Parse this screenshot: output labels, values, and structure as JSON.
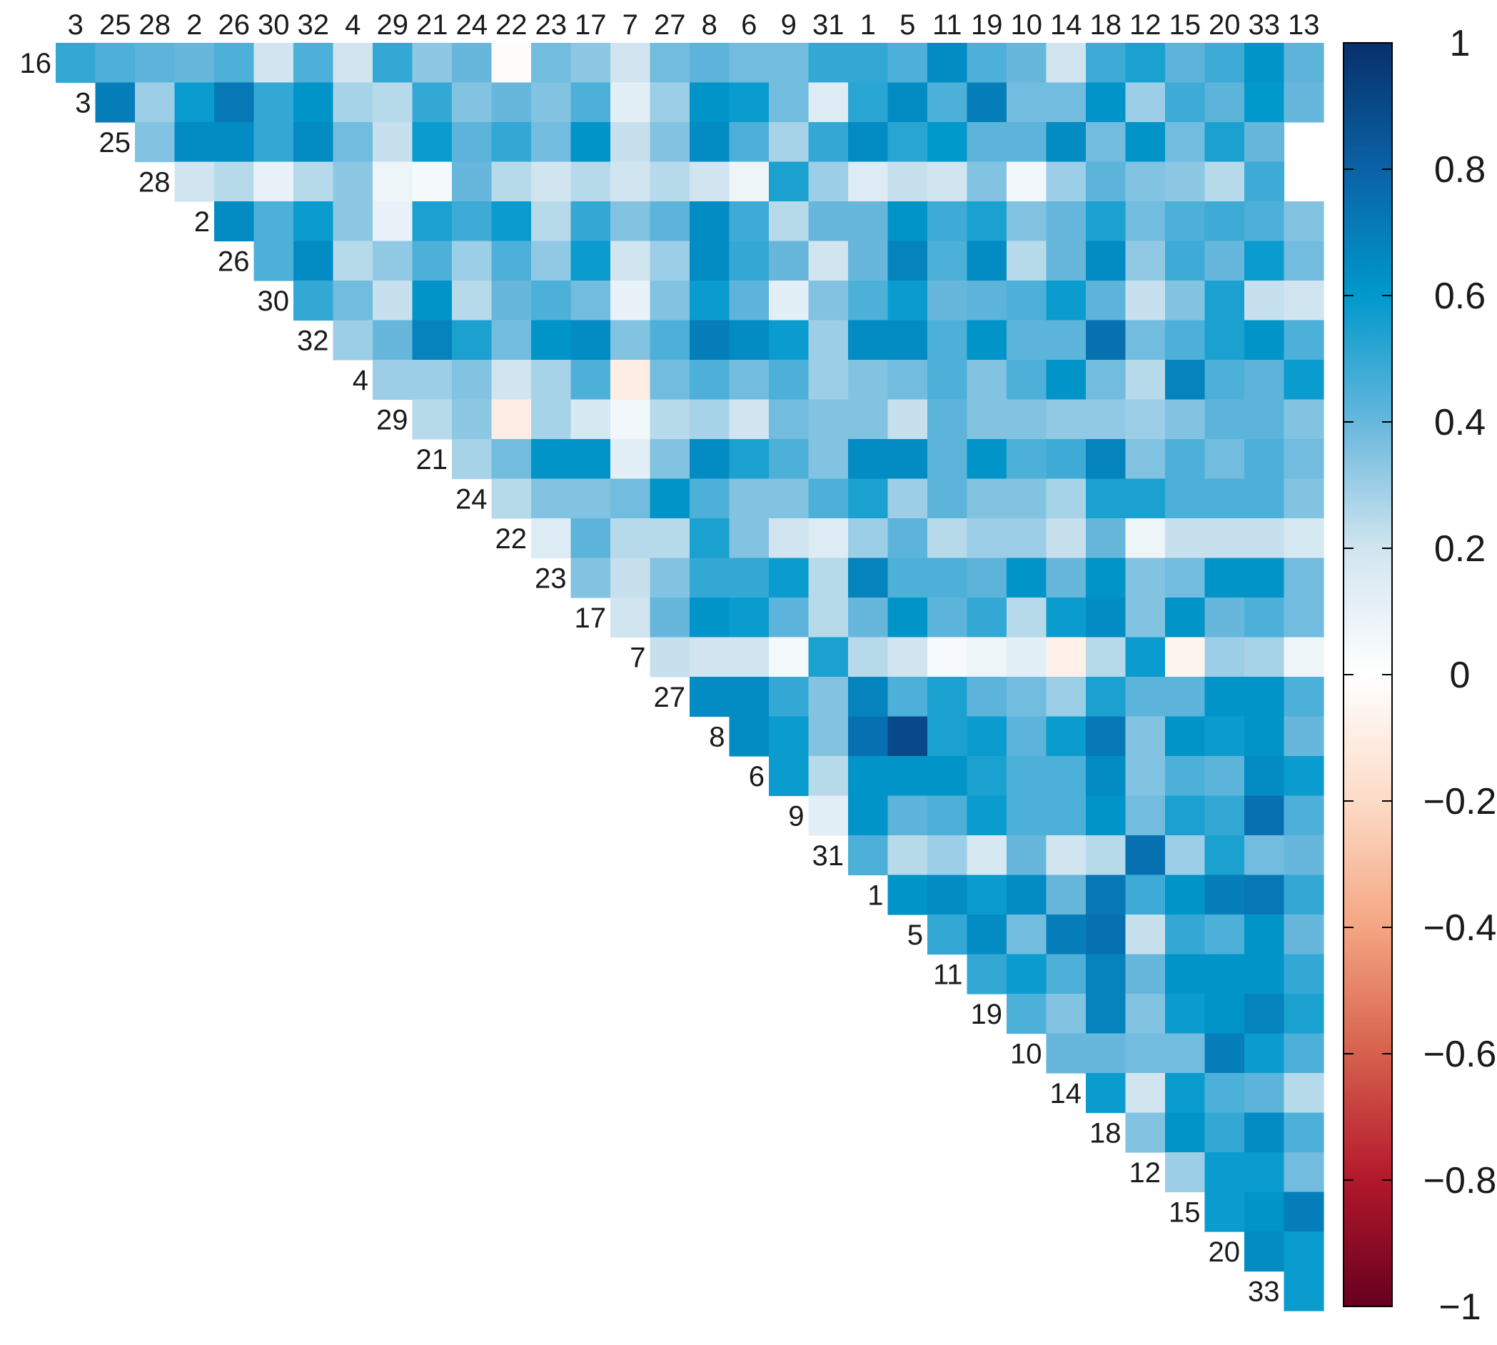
{
  "chart_data": {
    "type": "heatmap",
    "layout": "upper-triangle correlation matrix",
    "column_labels": [
      "3",
      "25",
      "28",
      "2",
      "26",
      "30",
      "32",
      "4",
      "29",
      "21",
      "24",
      "22",
      "23",
      "17",
      "7",
      "27",
      "8",
      "6",
      "9",
      "31",
      "1",
      "5",
      "11",
      "19",
      "10",
      "14",
      "18",
      "12",
      "15",
      "20",
      "33",
      "13"
    ],
    "row_labels": [
      "16",
      "3",
      "25",
      "28",
      "2",
      "26",
      "30",
      "32",
      "4",
      "29",
      "21",
      "24",
      "22",
      "23",
      "17",
      "7",
      "27",
      "8",
      "6",
      "9",
      "31",
      "1",
      "5",
      "11",
      "19",
      "10",
      "14",
      "18",
      "12",
      "15",
      "20",
      "33"
    ],
    "values": [
      [
        0.5,
        0.45,
        0.42,
        0.4,
        0.45,
        0.2,
        0.45,
        0.2,
        0.5,
        0.33,
        0.4,
        -0.02,
        0.38,
        0.33,
        0.2,
        0.38,
        0.42,
        0.38,
        0.38,
        0.5,
        0.5,
        0.45,
        0.65,
        0.45,
        0.4,
        0.2,
        0.48,
        0.55,
        0.42,
        0.48,
        0.62,
        0.42
      ],
      [
        0.7,
        0.3,
        0.58,
        0.72,
        0.5,
        0.62,
        0.28,
        0.25,
        0.5,
        0.35,
        0.4,
        0.35,
        0.45,
        0.12,
        0.3,
        0.62,
        0.58,
        0.38,
        0.15,
        0.52,
        0.65,
        0.45,
        0.7,
        0.38,
        0.38,
        0.62,
        0.3,
        0.48,
        0.42,
        0.6,
        0.4
      ],
      [
        0.35,
        0.65,
        0.65,
        0.5,
        0.65,
        0.38,
        0.22,
        0.58,
        0.42,
        0.5,
        0.38,
        0.62,
        0.22,
        0.35,
        0.65,
        0.45,
        0.28,
        0.5,
        0.65,
        0.52,
        0.6,
        0.42,
        0.42,
        0.65,
        0.38,
        0.62,
        0.38,
        0.55,
        0.4
      ],
      [
        0.2,
        0.25,
        0.1,
        0.25,
        0.33,
        0.08,
        0.05,
        0.4,
        0.25,
        0.2,
        0.25,
        0.2,
        0.25,
        0.2,
        0.08,
        0.55,
        0.3,
        0.15,
        0.22,
        0.2,
        0.35,
        0.06,
        0.3,
        0.42,
        0.35,
        0.33,
        0.25,
        0.48
      ],
      [
        0.65,
        0.45,
        0.58,
        0.33,
        0.1,
        0.55,
        0.48,
        0.58,
        0.25,
        0.5,
        0.35,
        0.42,
        0.65,
        0.48,
        0.25,
        0.4,
        0.4,
        0.62,
        0.48,
        0.55,
        0.35,
        0.4,
        0.55,
        0.38,
        0.45,
        0.48,
        0.45,
        0.35
      ],
      [
        0.45,
        0.65,
        0.25,
        0.32,
        0.45,
        0.3,
        0.45,
        0.32,
        0.58,
        0.2,
        0.3,
        0.65,
        0.5,
        0.4,
        0.2,
        0.4,
        0.68,
        0.45,
        0.65,
        0.25,
        0.4,
        0.65,
        0.32,
        0.48,
        0.4,
        0.58,
        0.38
      ],
      [
        0.5,
        0.38,
        0.22,
        0.62,
        0.25,
        0.4,
        0.45,
        0.38,
        0.1,
        0.35,
        0.58,
        0.42,
        0.12,
        0.35,
        0.45,
        0.58,
        0.4,
        0.42,
        0.45,
        0.58,
        0.42,
        0.22,
        0.35,
        0.55,
        0.22,
        0.2
      ],
      [
        0.3,
        0.4,
        0.68,
        0.55,
        0.38,
        0.62,
        0.65,
        0.35,
        0.45,
        0.7,
        0.65,
        0.58,
        0.3,
        0.65,
        0.65,
        0.45,
        0.62,
        0.42,
        0.42,
        0.75,
        0.38,
        0.45,
        0.55,
        0.62,
        0.45
      ],
      [
        0.3,
        0.3,
        0.35,
        0.2,
        0.28,
        0.45,
        -0.1,
        0.38,
        0.45,
        0.38,
        0.45,
        0.3,
        0.35,
        0.38,
        0.45,
        0.35,
        0.45,
        0.62,
        0.38,
        0.25,
        0.68,
        0.45,
        0.42,
        0.58
      ],
      [
        0.25,
        0.33,
        -0.1,
        0.28,
        0.18,
        0.06,
        0.25,
        0.28,
        0.2,
        0.38,
        0.35,
        0.35,
        0.22,
        0.42,
        0.35,
        0.35,
        0.32,
        0.32,
        0.3,
        0.35,
        0.42,
        0.42,
        0.35
      ],
      [
        0.28,
        0.38,
        0.62,
        0.62,
        0.12,
        0.35,
        0.65,
        0.55,
        0.45,
        0.35,
        0.65,
        0.65,
        0.42,
        0.62,
        0.45,
        0.48,
        0.68,
        0.35,
        0.45,
        0.38,
        0.45,
        0.38
      ],
      [
        0.25,
        0.35,
        0.35,
        0.38,
        0.62,
        0.45,
        0.35,
        0.35,
        0.45,
        0.55,
        0.3,
        0.42,
        0.35,
        0.35,
        0.28,
        0.55,
        0.55,
        0.45,
        0.45,
        0.45,
        0.35
      ],
      [
        0.15,
        0.42,
        0.25,
        0.25,
        0.55,
        0.35,
        0.2,
        0.15,
        0.3,
        0.42,
        0.25,
        0.3,
        0.3,
        0.22,
        0.4,
        0.08,
        0.22,
        0.22,
        0.22,
        0.18
      ],
      [
        0.35,
        0.22,
        0.35,
        0.5,
        0.5,
        0.58,
        0.25,
        0.68,
        0.45,
        0.45,
        0.42,
        0.62,
        0.4,
        0.62,
        0.35,
        0.38,
        0.62,
        0.62,
        0.38
      ],
      [
        0.2,
        0.4,
        0.62,
        0.58,
        0.42,
        0.25,
        0.4,
        0.62,
        0.42,
        0.5,
        0.25,
        0.58,
        0.65,
        0.35,
        0.62,
        0.4,
        0.45,
        0.38
      ],
      [
        0.22,
        0.2,
        0.2,
        0.05,
        0.55,
        0.25,
        0.2,
        0.04,
        0.08,
        0.12,
        -0.08,
        0.25,
        0.58,
        -0.06,
        0.3,
        0.28,
        0.08
      ],
      [
        0.65,
        0.65,
        0.5,
        0.35,
        0.68,
        0.45,
        0.55,
        0.42,
        0.38,
        0.3,
        0.55,
        0.42,
        0.42,
        0.62,
        0.62,
        0.45
      ],
      [
        0.65,
        0.58,
        0.35,
        0.75,
        0.9,
        0.55,
        0.58,
        0.42,
        0.58,
        0.72,
        0.35,
        0.62,
        0.58,
        0.62,
        0.4
      ],
      [
        0.58,
        0.25,
        0.62,
        0.62,
        0.62,
        0.55,
        0.45,
        0.45,
        0.65,
        0.35,
        0.45,
        0.42,
        0.65,
        0.58
      ],
      [
        0.12,
        0.62,
        0.42,
        0.45,
        0.58,
        0.45,
        0.45,
        0.62,
        0.38,
        0.55,
        0.5,
        0.75,
        0.45
      ],
      [
        0.45,
        0.25,
        0.3,
        0.18,
        0.4,
        0.2,
        0.25,
        0.75,
        0.3,
        0.55,
        0.38,
        0.4
      ],
      [
        0.62,
        0.65,
        0.58,
        0.65,
        0.4,
        0.72,
        0.48,
        0.62,
        0.7,
        0.72,
        0.5
      ],
      [
        0.5,
        0.65,
        0.38,
        0.7,
        0.75,
        0.22,
        0.5,
        0.45,
        0.62,
        0.4
      ],
      [
        0.5,
        0.58,
        0.45,
        0.68,
        0.4,
        0.62,
        0.62,
        0.62,
        0.5
      ],
      [
        0.45,
        0.35,
        0.68,
        0.35,
        0.58,
        0.62,
        0.68,
        0.55
      ],
      [
        0.4,
        0.4,
        0.38,
        0.38,
        0.7,
        0.58,
        0.45
      ],
      [
        0.58,
        0.2,
        0.58,
        0.45,
        0.42,
        0.25
      ],
      [
        0.35,
        0.62,
        0.5,
        0.65,
        0.45
      ],
      [
        0.3,
        0.58,
        0.58,
        0.38
      ],
      [
        0.58,
        0.62,
        0.7
      ],
      [
        0.65,
        0.58
      ],
      [
        0.58
      ]
    ],
    "colorbar": {
      "range": [
        -1,
        1
      ],
      "ticks": [
        1,
        0.8,
        0.6,
        0.4,
        0.2,
        0,
        -0.2,
        -0.4,
        -0.6,
        -0.8,
        -1
      ],
      "tick_labels": [
        "1",
        "0.8",
        "0.6",
        "0.4",
        "0.2",
        "0",
        "−0.2",
        "−0.4",
        "−0.6",
        "−0.8",
        "−1"
      ],
      "colors": {
        "-1": "#67001f",
        "-0.8": "#b2182b",
        "-0.6": "#d6604d",
        "-0.4": "#f4a582",
        "-0.2": "#fddbc7",
        "0": "#ffffff",
        "0.2": "#d1e5f0",
        "0.4": "#67b7dd",
        "0.6": "#0099cc",
        "0.8": "#0a62a6",
        "1": "#08306b"
      }
    },
    "title": "",
    "xlabel": "",
    "ylabel": ""
  }
}
